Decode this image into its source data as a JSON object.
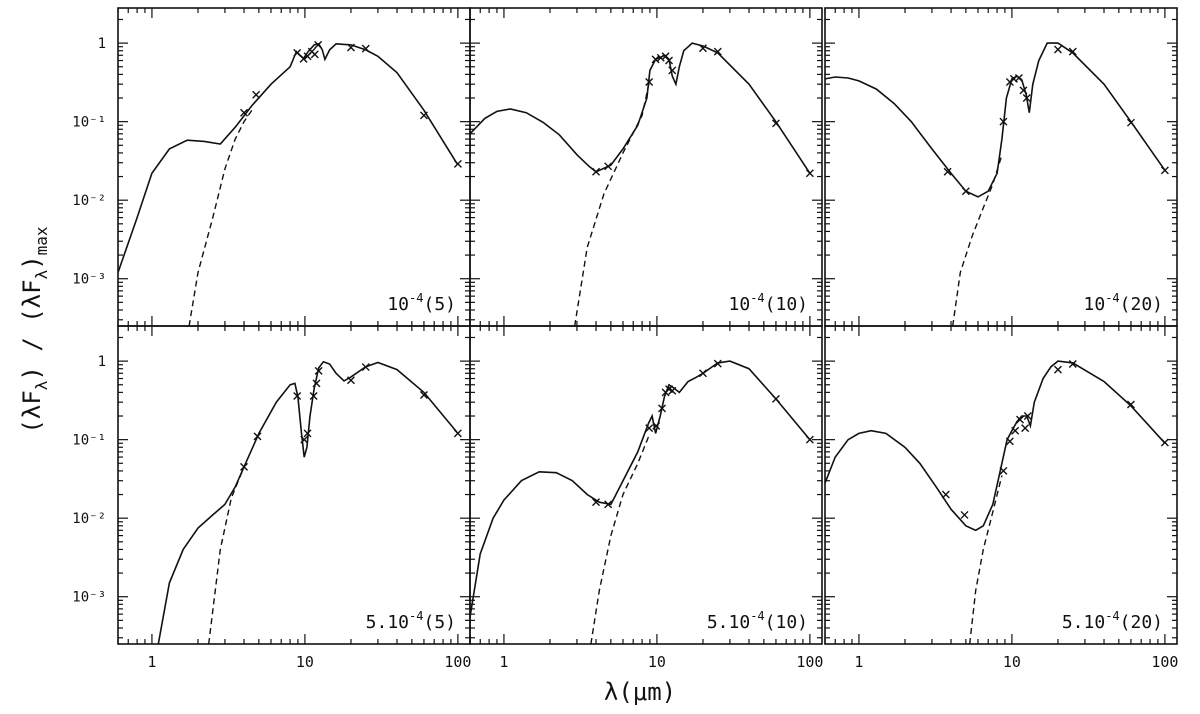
{
  "figure": {
    "ylabel": "(λF",
    "ylabel_sub1": "λ",
    "ylabel_mid": ") / (λF",
    "ylabel_sub2": "λ",
    "ylabel_end": ")",
    "ylabel_sub3": "max",
    "xlabel": "λ(μm)"
  },
  "chart_data": [
    {
      "type": "line",
      "title": "10⁻⁴(5)",
      "label_base": "10",
      "label_exp": "-4",
      "label_tail": "(5)",
      "x_scale": "log",
      "y_scale": "log",
      "xlim": [
        0.6,
        120
      ],
      "ylim": [
        0.00025,
        2.8
      ],
      "x_ticks": [],
      "y_ticks": [
        "1",
        "10⁻¹",
        "10⁻²",
        "10⁻³"
      ],
      "series": [
        {
          "style": "solid",
          "x": [
            0.6,
            0.8,
            1.0,
            1.3,
            1.7,
            2.2,
            2.8,
            3.5,
            4.5,
            6,
            8,
            8.8,
            9.3,
            9.8,
            10.5,
            11.5,
            12.3,
            13,
            13.5,
            14.5,
            16,
            20,
            25,
            30,
            40,
            60,
            100
          ],
          "y": [
            0.0012,
            0.006,
            0.022,
            0.045,
            0.058,
            0.056,
            0.052,
            0.085,
            0.16,
            0.3,
            0.5,
            0.78,
            0.7,
            0.64,
            0.78,
            0.95,
            0.98,
            0.82,
            0.62,
            0.82,
            0.98,
            0.95,
            0.82,
            0.68,
            0.42,
            0.14,
            0.028
          ]
        },
        {
          "style": "dashed",
          "x": [
            1.75,
            2.0,
            2.5,
            3.0,
            3.5,
            4.0,
            4.5
          ],
          "y": [
            0.00025,
            0.0012,
            0.006,
            0.025,
            0.06,
            0.1,
            0.14
          ]
        }
      ],
      "observations": {
        "x": [
          4.0,
          4.8,
          8.9,
          9.8,
          10.4,
          11.1,
          11.6,
          12.2,
          20,
          25,
          60,
          100
        ],
        "y": [
          0.13,
          0.22,
          0.75,
          0.63,
          0.68,
          0.78,
          0.72,
          0.95,
          0.88,
          0.85,
          0.12,
          0.029
        ]
      }
    },
    {
      "type": "line",
      "title": "10⁻⁴(10)",
      "label_base": "10",
      "label_exp": "-4",
      "label_tail": "(10)",
      "x_scale": "log",
      "y_scale": "log",
      "xlim": [
        0.6,
        120
      ],
      "ylim": [
        0.00025,
        2.8
      ],
      "x_ticks": [],
      "y_ticks": [],
      "series": [
        {
          "style": "solid",
          "x": [
            0.6,
            0.75,
            0.9,
            1.1,
            1.4,
            1.8,
            2.3,
            3.0,
            3.6,
            4.0,
            5.0,
            6.0,
            7.5,
            8.6,
            9.0,
            9.8,
            10.5,
            11.3,
            12.0,
            12.6,
            13.3,
            14.0,
            15.0,
            17,
            20,
            25,
            40,
            60,
            100
          ],
          "y": [
            0.07,
            0.11,
            0.135,
            0.145,
            0.13,
            0.098,
            0.068,
            0.038,
            0.027,
            0.023,
            0.028,
            0.045,
            0.09,
            0.2,
            0.45,
            0.62,
            0.66,
            0.7,
            0.62,
            0.38,
            0.3,
            0.5,
            0.8,
            1.0,
            0.92,
            0.75,
            0.3,
            0.1,
            0.022
          ]
        },
        {
          "style": "dashed",
          "x": [
            2.9,
            3.5,
            4.5,
            6,
            8,
            9
          ],
          "y": [
            0.00025,
            0.0025,
            0.012,
            0.04,
            0.12,
            0.35
          ]
        }
      ],
      "observations": {
        "x": [
          4.0,
          4.8,
          8.9,
          9.8,
          10.6,
          11.4,
          12.0,
          12.6,
          20,
          25,
          60,
          100
        ],
        "y": [
          0.023,
          0.027,
          0.32,
          0.62,
          0.65,
          0.68,
          0.6,
          0.45,
          0.86,
          0.78,
          0.095,
          0.022
        ]
      }
    },
    {
      "type": "line",
      "title": "10⁻⁴(20)",
      "label_base": "10",
      "label_exp": "-4",
      "label_tail": "(20)",
      "x_scale": "log",
      "y_scale": "log",
      "xlim": [
        0.6,
        120
      ],
      "ylim": [
        0.00025,
        2.8
      ],
      "x_ticks": [],
      "y_ticks": [],
      "series": [
        {
          "style": "solid",
          "x": [
            0.6,
            0.7,
            0.85,
            1.0,
            1.3,
            1.7,
            2.2,
            3.0,
            4.0,
            5.0,
            6.0,
            7.0,
            8.0,
            8.6,
            9.2,
            10.0,
            10.8,
            11.6,
            12.4,
            13.0,
            13.7,
            15,
            17,
            20,
            25,
            40,
            60,
            100
          ],
          "y": [
            0.35,
            0.37,
            0.36,
            0.33,
            0.26,
            0.17,
            0.1,
            0.045,
            0.022,
            0.013,
            0.011,
            0.013,
            0.022,
            0.06,
            0.2,
            0.35,
            0.38,
            0.34,
            0.22,
            0.13,
            0.3,
            0.6,
            1.0,
            1.0,
            0.75,
            0.3,
            0.1,
            0.024
          ]
        },
        {
          "style": "dashed",
          "x": [
            4.1,
            4.6,
            5.5,
            6.5,
            7.5,
            8.5
          ],
          "y": [
            0.00025,
            0.0012,
            0.0035,
            0.008,
            0.016,
            0.035
          ]
        }
      ],
      "observations": {
        "x": [
          3.8,
          5.0,
          8.8,
          9.7,
          10.3,
          11.1,
          11.9,
          12.5,
          20,
          25,
          60,
          100
        ],
        "y": [
          0.023,
          0.013,
          0.1,
          0.32,
          0.35,
          0.36,
          0.25,
          0.2,
          0.83,
          0.78,
          0.097,
          0.024
        ]
      }
    },
    {
      "type": "line",
      "title": "5.10⁻⁴(5)",
      "label_base": "5.10",
      "label_exp": "-4",
      "label_tail": "(5)",
      "x_scale": "log",
      "y_scale": "log",
      "xlim": [
        0.6,
        120
      ],
      "ylim": [
        0.00025,
        2.8
      ],
      "x_ticks": [
        "1",
        "10",
        "100"
      ],
      "y_ticks": [
        "1",
        "10⁻¹",
        "10⁻²",
        "10⁻³"
      ],
      "series": [
        {
          "style": "solid",
          "x": [
            1.1,
            1.3,
            1.6,
            2.0,
            2.5,
            3.0,
            3.5,
            4.0,
            5.0,
            6.5,
            8.0,
            8.6,
            9.0,
            9.5,
            9.9,
            10.3,
            10.8,
            11.5,
            12.3,
            13.2,
            14.5,
            16,
            18,
            20,
            25,
            30,
            40,
            60,
            100
          ],
          "y": [
            0.00025,
            0.0015,
            0.004,
            0.0075,
            0.011,
            0.015,
            0.025,
            0.045,
            0.12,
            0.3,
            0.5,
            0.52,
            0.35,
            0.12,
            0.06,
            0.08,
            0.2,
            0.45,
            0.82,
            0.98,
            0.92,
            0.7,
            0.56,
            0.63,
            0.85,
            0.96,
            0.78,
            0.4,
            0.12
          ]
        },
        {
          "style": "dashed",
          "x": [
            2.35,
            2.8,
            3.3,
            4.0
          ],
          "y": [
            0.00025,
            0.004,
            0.018,
            0.045
          ]
        }
      ],
      "observations": {
        "x": [
          4.0,
          4.9,
          8.9,
          9.9,
          10.4,
          11.4,
          11.9,
          12.3,
          20,
          25,
          60,
          100
        ],
        "y": [
          0.045,
          0.11,
          0.36,
          0.1,
          0.12,
          0.36,
          0.52,
          0.75,
          0.57,
          0.84,
          0.37,
          0.12
        ]
      }
    },
    {
      "type": "line",
      "title": "5.10⁻⁴(10)",
      "label_base": "5.10",
      "label_exp": "-4",
      "label_tail": "(10)",
      "x_scale": "log",
      "y_scale": "log",
      "xlim": [
        0.6,
        120
      ],
      "ylim": [
        0.00025,
        2.8
      ],
      "x_ticks": [
        "1",
        "10",
        "100"
      ],
      "y_ticks": [],
      "series": [
        {
          "style": "solid",
          "x": [
            0.6,
            0.7,
            0.85,
            1.0,
            1.3,
            1.7,
            2.2,
            2.8,
            3.5,
            4.2,
            5.0,
            6.0,
            7.5,
            8.8,
            9.3,
            9.8,
            10.5,
            11.2,
            12.0,
            13.0,
            14.0,
            16,
            18,
            20,
            25,
            30,
            40,
            60,
            100
          ],
          "y": [
            0.00055,
            0.0035,
            0.01,
            0.017,
            0.03,
            0.039,
            0.038,
            0.03,
            0.02,
            0.016,
            0.015,
            0.03,
            0.07,
            0.16,
            0.2,
            0.12,
            0.2,
            0.35,
            0.5,
            0.45,
            0.4,
            0.55,
            0.62,
            0.7,
            0.95,
            1.0,
            0.8,
            0.33,
            0.1
          ]
        },
        {
          "style": "dashed",
          "x": [
            3.7,
            4.2,
            5.0,
            6.0,
            7.5,
            9.0
          ],
          "y": [
            0.00025,
            0.0012,
            0.006,
            0.02,
            0.05,
            0.12
          ]
        }
      ],
      "observations": {
        "x": [
          4.0,
          4.8,
          8.9,
          9.9,
          10.8,
          11.4,
          12.0,
          12.6,
          20,
          25,
          60,
          100
        ],
        "y": [
          0.016,
          0.015,
          0.14,
          0.15,
          0.25,
          0.4,
          0.44,
          0.42,
          0.7,
          0.93,
          0.33,
          0.1
        ]
      }
    },
    {
      "type": "line",
      "title": "5.10⁻⁴(20)",
      "label_base": "5.10",
      "label_exp": "-4",
      "label_tail": "(20)",
      "x_scale": "log",
      "y_scale": "log",
      "xlim": [
        0.6,
        120
      ],
      "ylim": [
        0.00025,
        2.8
      ],
      "x_ticks": [
        "1",
        "10",
        "100"
      ],
      "y_ticks": [],
      "series": [
        {
          "style": "solid",
          "x": [
            0.6,
            0.7,
            0.85,
            1.0,
            1.2,
            1.5,
            2.0,
            2.5,
            3.2,
            4.0,
            5.0,
            5.8,
            6.5,
            7.5,
            8.6,
            9.3,
            10.0,
            10.8,
            11.6,
            12.5,
            13.2,
            14.0,
            16,
            18,
            20,
            25,
            40,
            60,
            100
          ],
          "y": [
            0.028,
            0.06,
            0.1,
            0.12,
            0.13,
            0.12,
            0.08,
            0.05,
            0.025,
            0.013,
            0.008,
            0.007,
            0.008,
            0.015,
            0.05,
            0.1,
            0.13,
            0.17,
            0.2,
            0.2,
            0.15,
            0.3,
            0.6,
            0.85,
            1.0,
            0.95,
            0.55,
            0.27,
            0.09
          ]
        },
        {
          "style": "dashed",
          "x": [
            5.3,
            5.8,
            6.5,
            7.5,
            8.6
          ],
          "y": [
            0.00025,
            0.0012,
            0.004,
            0.012,
            0.035
          ]
        }
      ],
      "observations": {
        "x": [
          3.7,
          4.9,
          8.8,
          9.7,
          10.5,
          11.3,
          12.2,
          12.7,
          20,
          25,
          60,
          100
        ],
        "y": [
          0.02,
          0.011,
          0.04,
          0.095,
          0.13,
          0.18,
          0.14,
          0.2,
          0.78,
          0.92,
          0.28,
          0.092
        ]
      }
    }
  ]
}
